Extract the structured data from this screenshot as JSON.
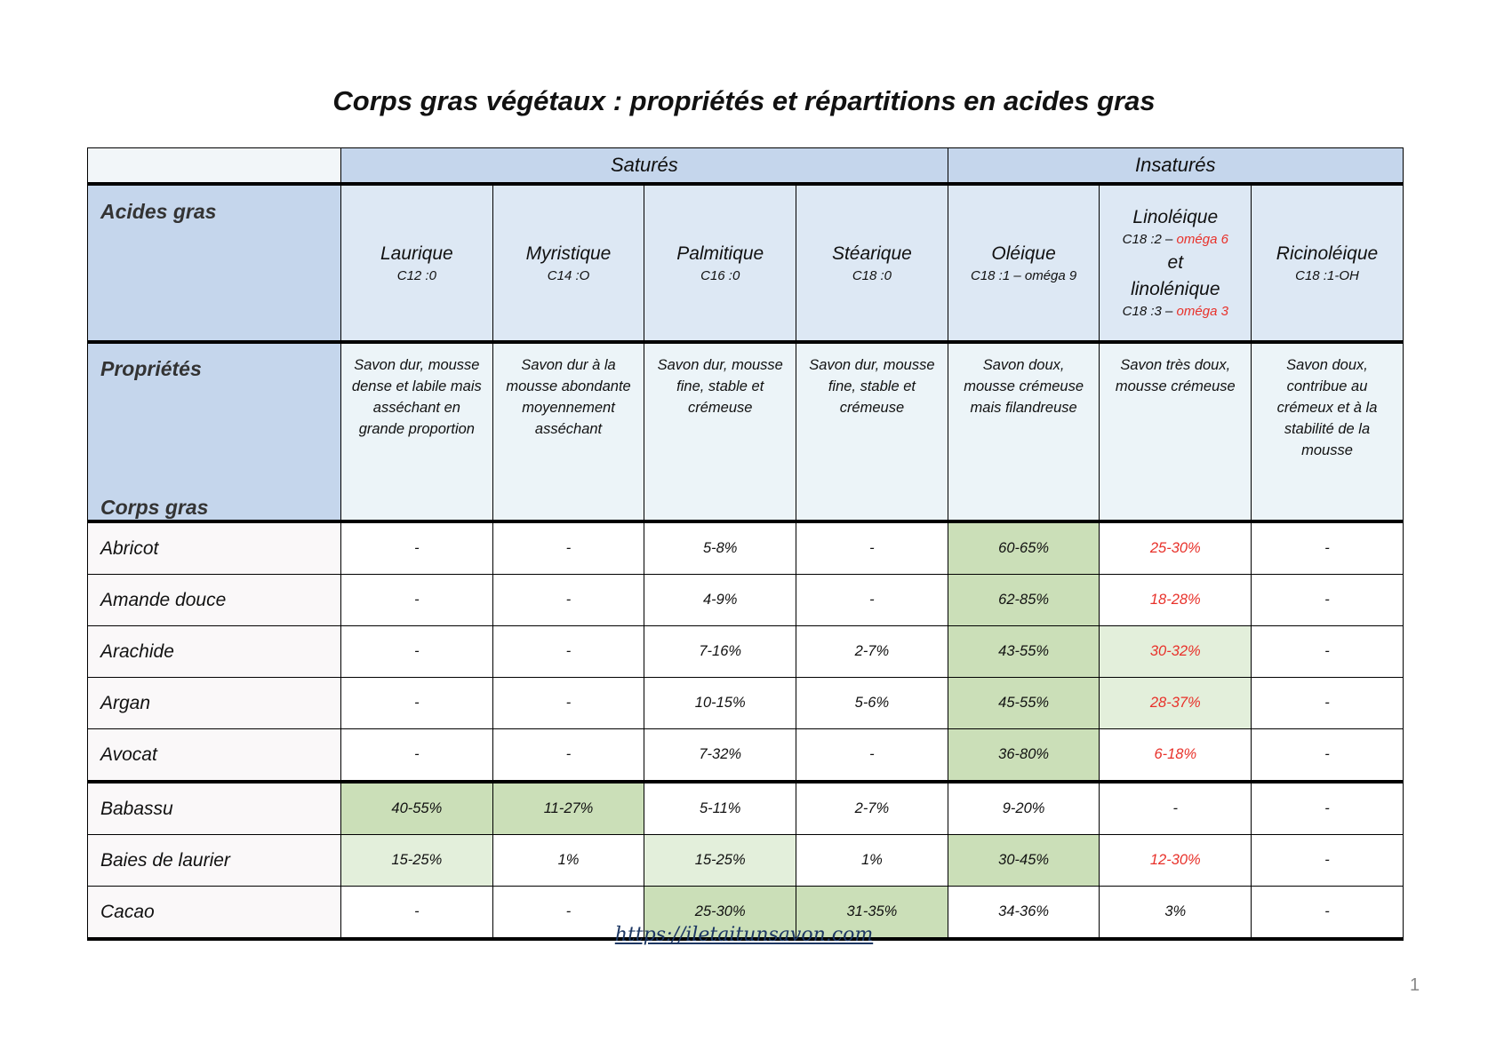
{
  "title": "Corps gras végétaux : propriétés et répartitions en acides gras",
  "groups": {
    "satures": "Saturés",
    "insatures": "Insaturés"
  },
  "labels": {
    "acides": "Acides gras",
    "proprietes": "Propriétés",
    "corps": "Corps gras"
  },
  "acids": [
    {
      "name": "Laurique",
      "code": "C12 :0",
      "prop": "Savon dur, mousse dense et labile mais asséchant en grande proportion"
    },
    {
      "name": "Myristique",
      "code": "C14 :O",
      "prop": "Savon dur à la mousse abondante moyennement asséchant"
    },
    {
      "name": "Palmitique",
      "code": "C16 :0",
      "prop": "Savon dur, mousse fine, stable et crémeuse"
    },
    {
      "name": "Stéarique",
      "code": "C18 :0",
      "prop": "Savon dur, mousse fine, stable et crémeuse"
    },
    {
      "name": "Oléique",
      "code": "C18 :1 – oméga 9",
      "prop": "Savon doux, mousse crémeuse mais filandreuse"
    },
    {
      "name": "Linoléique",
      "code": "C18 :2 – ",
      "omega": "oméga 6",
      "et": "et",
      "name2": "linolénique",
      "code2": "C18 :3 – ",
      "omega2": "oméga 3",
      "prop": "Savon très doux, mousse crémeuse"
    },
    {
      "name": "Ricinoléique",
      "code": "C18 :1-OH",
      "prop": "Savon doux, contribue au crémeux et à la stabilité de la mousse"
    }
  ],
  "rows": [
    {
      "name": "Abricot",
      "values": [
        "-",
        "-",
        "5-8%",
        "-",
        "60-65%",
        "25-30%",
        "-"
      ]
    },
    {
      "name": "Amande douce",
      "values": [
        "-",
        "-",
        "4-9%",
        "-",
        "62-85%",
        "18-28%",
        "-"
      ]
    },
    {
      "name": "Arachide",
      "values": [
        "-",
        "-",
        "7-16%",
        "2-7%",
        "43-55%",
        "30-32%",
        "-"
      ]
    },
    {
      "name": "Argan",
      "values": [
        "-",
        "-",
        "10-15%",
        "5-6%",
        "45-55%",
        "28-37%",
        "-"
      ]
    },
    {
      "name": "Avocat",
      "values": [
        "-",
        "-",
        "7-32%",
        "-",
        "36-80%",
        "6-18%",
        "-"
      ]
    },
    {
      "name": "Babassu",
      "values": [
        "40-55%",
        "11-27%",
        "5-11%",
        "2-7%",
        "9-20%",
        "-",
        "-"
      ]
    },
    {
      "name": "Baies de laurier",
      "values": [
        "15-25%",
        "1%",
        "15-25%",
        "1%",
        "30-45%",
        "12-30%",
        "-"
      ]
    },
    {
      "name": "Cacao",
      "values": [
        "-",
        "-",
        "25-30%",
        "31-35%",
        "34-36%",
        "3%",
        "-"
      ]
    }
  ],
  "link": "https://iletaitunsavon.com",
  "page_number": "1"
}
